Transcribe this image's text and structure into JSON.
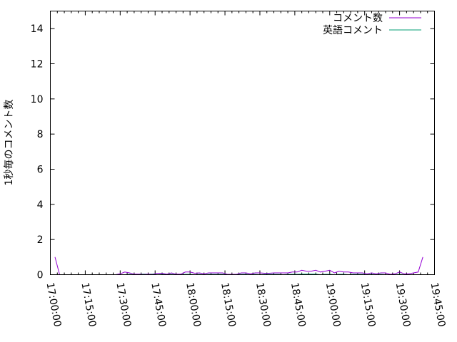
{
  "chart_data": {
    "type": "line",
    "title": "",
    "xlabel": "",
    "ylabel": "1秒毎のコメント数",
    "xlim": [
      "17:00:00",
      "19:45:00"
    ],
    "ylim": [
      0,
      15
    ],
    "x_tick_labels": [
      "17:00:00",
      "17:15:00",
      "17:30:00",
      "17:45:00",
      "18:00:00",
      "18:15:00",
      "18:30:00",
      "18:45:00",
      "19:00:00",
      "19:15:00",
      "19:30:00",
      "19:45:00"
    ],
    "y_tick_labels": [
      "0",
      "2",
      "4",
      "6",
      "8",
      "10",
      "12",
      "14"
    ],
    "grid": false,
    "legend_position": "top-right",
    "x": [
      "17:02:00",
      "17:04:00",
      "17:06:00",
      "17:08:00",
      "17:10:00",
      "17:12:00",
      "17:14:00",
      "17:16:00",
      "17:18:00",
      "17:20:00",
      "17:22:00",
      "17:24:00",
      "17:26:00",
      "17:28:00",
      "17:30:00",
      "17:32:00",
      "17:34:00",
      "17:36:00",
      "17:38:00",
      "17:40:00",
      "17:42:00",
      "17:44:00",
      "17:46:00",
      "17:48:00",
      "17:50:00",
      "17:52:00",
      "17:54:00",
      "17:56:00",
      "17:58:00",
      "18:00:00",
      "18:02:00",
      "18:04:00",
      "18:06:00",
      "18:08:00",
      "18:10:00",
      "18:12:00",
      "18:14:00",
      "18:16:00",
      "18:18:00",
      "18:20:00",
      "18:22:00",
      "18:24:00",
      "18:26:00",
      "18:28:00",
      "18:30:00",
      "18:32:00",
      "18:34:00",
      "18:36:00",
      "18:38:00",
      "18:40:00",
      "18:42:00",
      "18:44:00",
      "18:46:00",
      "18:48:00",
      "18:50:00",
      "18:52:00",
      "18:54:00",
      "18:56:00",
      "18:58:00",
      "19:00:00",
      "19:02:00",
      "19:04:00",
      "19:06:00",
      "19:08:00",
      "19:10:00",
      "19:12:00",
      "19:14:00",
      "19:16:00",
      "19:18:00",
      "19:20:00",
      "19:22:00",
      "19:24:00",
      "19:26:00",
      "19:28:00",
      "19:30:00",
      "19:32:00",
      "19:34:00",
      "19:36:00",
      "19:38:00",
      "19:40:00"
    ],
    "series": [
      {
        "name": "コメント数",
        "color": "#9400d3",
        "values": [
          1,
          0,
          0,
          0,
          0,
          0,
          0,
          0,
          0,
          0,
          0,
          0,
          0,
          0,
          0.05,
          0.15,
          0.1,
          0.03,
          0.03,
          0.03,
          0.03,
          0.03,
          0.08,
          0.08,
          0.03,
          0.1,
          0.03,
          0.03,
          0.15,
          0.15,
          0.08,
          0.1,
          0.05,
          0.1,
          0.1,
          0.1,
          0.1,
          0.02,
          0.02,
          0.02,
          0.1,
          0.1,
          0.05,
          0.1,
          0.1,
          0.08,
          0.08,
          0.1,
          0.1,
          0.1,
          0.1,
          0.15,
          0.15,
          0.25,
          0.2,
          0.2,
          0.25,
          0.15,
          0.2,
          0.25,
          0.1,
          0.2,
          0.15,
          0.15,
          0.1,
          0.1,
          0.1,
          0.05,
          0.1,
          0.05,
          0.1,
          0.1,
          0.02,
          0.05,
          0.15,
          0.05,
          0.05,
          0.1,
          0.15,
          1
        ]
      },
      {
        "name": "英語コメント",
        "color": "#009e73",
        "values": [
          0,
          0,
          0,
          0,
          0,
          0,
          0,
          0,
          0,
          0,
          0,
          0,
          0,
          0,
          0,
          0,
          0.02,
          0,
          0,
          0.02,
          0,
          0.02,
          0,
          0.02,
          0,
          0.02,
          0,
          0,
          0.02,
          0.02,
          0,
          0.02,
          0,
          0.02,
          0.02,
          0.02,
          0.02,
          0,
          0,
          0,
          0.02,
          0.02,
          0,
          0.02,
          0,
          0.02,
          0.02,
          0.02,
          0.02,
          0,
          0.02,
          0.02,
          0.02,
          0.03,
          0.03,
          0.03,
          0.03,
          0,
          0.02,
          0.02,
          0,
          0.02,
          0.02,
          0,
          0.02,
          0.02,
          0.02,
          0,
          0.02,
          0,
          0.02,
          0,
          0,
          0,
          0.02,
          0,
          0,
          0,
          0,
          0
        ]
      }
    ]
  }
}
